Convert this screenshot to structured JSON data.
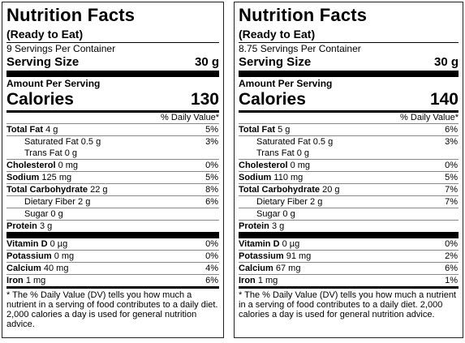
{
  "labels": [
    {
      "title": "Nutrition Facts",
      "ready": "(Ready to Eat)",
      "servings": "9 Servings Per Container",
      "serving_size_label": "Serving Size",
      "serving_size_value": "30 g",
      "amount_per_serving": "Amount Per Serving",
      "calories_label": "Calories",
      "calories_value": "130",
      "dv_header": "% Daily Value*",
      "nutrients": [
        {
          "name": "Total Fat",
          "amount": "4 g",
          "dv": "5%"
        },
        {
          "name": "Saturated Fat",
          "amount": "0.5 g",
          "dv": "3%"
        },
        {
          "name": "Trans Fat",
          "amount": "0 g",
          "dv": ""
        },
        {
          "name": "Cholesterol",
          "amount": "0 mg",
          "dv": "0%"
        },
        {
          "name": "Sodium",
          "amount": "125 mg",
          "dv": "5%"
        },
        {
          "name": "Total Carbohydrate",
          "amount": "22 g",
          "dv": "8%"
        },
        {
          "name": "Dietary Fiber",
          "amount": "2 g",
          "dv": "6%"
        },
        {
          "name": "Sugar",
          "amount": "0 g",
          "dv": ""
        },
        {
          "name": "Protein",
          "amount": "3 g",
          "dv": ""
        }
      ],
      "vitamins": [
        {
          "name": "Vitamin D",
          "amount": "0 µg",
          "dv": "0%"
        },
        {
          "name": "Potassium",
          "amount": "0 mg",
          "dv": "0%"
        },
        {
          "name": "Calcium",
          "amount": "40 mg",
          "dv": "4%"
        },
        {
          "name": "Iron",
          "amount": "1 mg",
          "dv": "6%"
        }
      ],
      "footnote": "* The % Daily Value (DV) tells you how much a nutrient in a serving of food contributes to a daily diet. 2,000 calories a day is used for general nutrition advice."
    },
    {
      "title": "Nutrition Facts",
      "ready": "(Ready to Eat)",
      "servings": "8.75 Servings Per Container",
      "serving_size_label": "Serving Size",
      "serving_size_value": "30 g",
      "amount_per_serving": "Amount Per Serving",
      "calories_label": "Calories",
      "calories_value": "140",
      "dv_header": "% Daily Value*",
      "nutrients": [
        {
          "name": "Total Fat",
          "amount": "5 g",
          "dv": "6%"
        },
        {
          "name": "Saturated Fat",
          "amount": "0.5 g",
          "dv": "3%"
        },
        {
          "name": "Trans Fat",
          "amount": "0 g",
          "dv": ""
        },
        {
          "name": "Cholesterol",
          "amount": "0 mg",
          "dv": "0%"
        },
        {
          "name": "Sodium",
          "amount": "110 mg",
          "dv": "5%"
        },
        {
          "name": "Total Carbohydrate",
          "amount": "20 g",
          "dv": "7%"
        },
        {
          "name": "Dietary Fiber",
          "amount": "2 g",
          "dv": "7%"
        },
        {
          "name": "Sugar",
          "amount": "0 g",
          "dv": ""
        },
        {
          "name": "Protein",
          "amount": "3 g",
          "dv": ""
        }
      ],
      "vitamins": [
        {
          "name": "Vitamin D",
          "amount": "0 µg",
          "dv": "0%"
        },
        {
          "name": "Potassium",
          "amount": "91 mg",
          "dv": "2%"
        },
        {
          "name": "Calcium",
          "amount": "67 mg",
          "dv": "6%"
        },
        {
          "name": "Iron",
          "amount": "1 mg",
          "dv": "1%"
        }
      ],
      "footnote": "* The % Daily Value (DV) tells you how much a nutrient in a serving of food contributes to a daily diet. 2,000 calories a day is used for general nutrition advice."
    }
  ]
}
